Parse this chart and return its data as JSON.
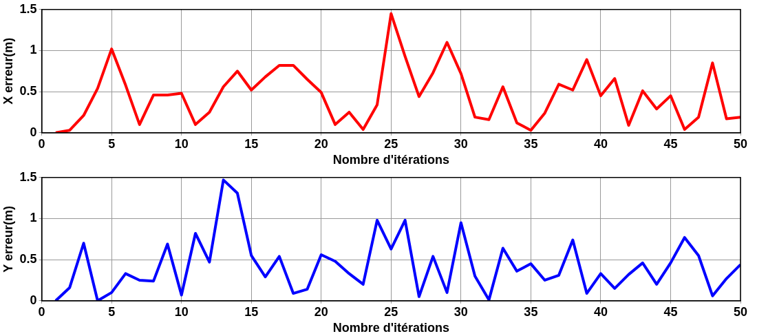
{
  "chart_data": [
    {
      "type": "line",
      "xlabel": "Nombre d'itérations",
      "ylabel": "X erreur(m)",
      "xlim": [
        0,
        50
      ],
      "xticks": [
        0,
        5,
        10,
        15,
        20,
        25,
        30,
        35,
        40,
        45,
        50
      ],
      "ylim": [
        0,
        1.5
      ],
      "yticks": [
        0,
        0.5,
        1,
        1.5
      ],
      "grid": true,
      "legend": false,
      "marker": "none",
      "line_style": "solid",
      "x": [
        1,
        2,
        3,
        4,
        5,
        6,
        7,
        8,
        9,
        10,
        11,
        12,
        13,
        14,
        15,
        16,
        17,
        18,
        19,
        20,
        21,
        22,
        23,
        24,
        25,
        26,
        27,
        28,
        29,
        30,
        31,
        32,
        33,
        34,
        35,
        36,
        37,
        38,
        39,
        40,
        41,
        42,
        43,
        44,
        45,
        46,
        47,
        48,
        49,
        50
      ],
      "series": [
        {
          "color": "#ff0000",
          "values": [
            0,
            0.03,
            0.21,
            0.54,
            1.02,
            0.58,
            0.1,
            0.46,
            0.46,
            0.48,
            0.1,
            0.25,
            0.56,
            0.75,
            0.52,
            0.68,
            0.82,
            0.82,
            0.65,
            0.49,
            0.1,
            0.25,
            0.04,
            0.34,
            1.45,
            0.93,
            0.44,
            0.73,
            1.1,
            0.72,
            0.19,
            0.16,
            0.56,
            0.12,
            0.03,
            0.24,
            0.59,
            0.52,
            0.89,
            0.45,
            0.66,
            0.09,
            0.51,
            0.29,
            0.45,
            0.04,
            0.19,
            0.85,
            0.17,
            0.19
          ]
        }
      ]
    },
    {
      "type": "line",
      "xlabel": "Nombre d'itérations",
      "ylabel": "Y erreur(m)",
      "xlim": [
        0,
        50
      ],
      "xticks": [
        0,
        5,
        10,
        15,
        20,
        25,
        30,
        35,
        40,
        45,
        50
      ],
      "ylim": [
        0,
        1.5
      ],
      "yticks": [
        0,
        0.5,
        1,
        1.5
      ],
      "grid": true,
      "legend": false,
      "marker": "none",
      "line_style": "solid",
      "x": [
        1,
        2,
        3,
        4,
        5,
        6,
        7,
        8,
        9,
        10,
        11,
        12,
        13,
        14,
        15,
        16,
        17,
        18,
        19,
        20,
        21,
        22,
        23,
        24,
        25,
        26,
        27,
        28,
        29,
        30,
        31,
        32,
        33,
        34,
        35,
        36,
        37,
        38,
        39,
        40,
        41,
        42,
        43,
        44,
        45,
        46,
        47,
        48,
        49,
        50
      ],
      "series": [
        {
          "color": "#0000ff",
          "values": [
            0,
            0.16,
            0.7,
            0,
            0.1,
            0.33,
            0.25,
            0.24,
            0.69,
            0.07,
            0.82,
            0.47,
            1.47,
            1.31,
            0.55,
            0.29,
            0.54,
            0.09,
            0.14,
            0.56,
            0.48,
            0.33,
            0.2,
            0.98,
            0.63,
            0.98,
            0.05,
            0.54,
            0.1,
            0.95,
            0.3,
            0.01,
            0.64,
            0.36,
            0.45,
            0.25,
            0.31,
            0.74,
            0.09,
            0.33,
            0.15,
            0.32,
            0.46,
            0.2,
            0.46,
            0.77,
            0.55,
            0.06,
            0.27,
            0.44
          ]
        }
      ]
    }
  ]
}
